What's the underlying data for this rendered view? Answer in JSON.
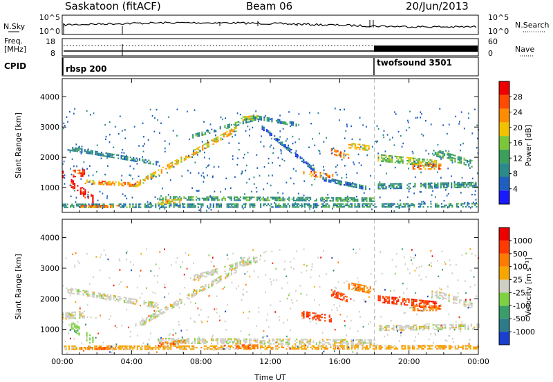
{
  "header": {
    "station": "Saskatoon (fitACF)",
    "beam": "Beam 06",
    "date": "20/Jun/2013"
  },
  "top_panels": {
    "nsky_label": "N.Sky",
    "nsearch_label": "N.Search",
    "freq_label_1": "Freq.",
    "freq_label_2": "[MHz]",
    "nave_label": "Nave",
    "cpid_label": "CPID",
    "noise_left_ticks": [
      "10^5",
      "10^0"
    ],
    "noise_right_ticks": [
      "10^5",
      "10^0"
    ],
    "freq_left_ticks": [
      "18",
      "8"
    ],
    "freq_right_ticks": [
      "60",
      "0"
    ],
    "cpid_segments": [
      {
        "name": "rbsp 200",
        "start_hour": 0.0
      },
      {
        "name": "twofsound 3501",
        "start_hour": 18.0
      }
    ]
  },
  "chart_data": [
    {
      "type": "heatmap",
      "name": "power",
      "xlabel": "Time UT",
      "ylabel": "Slant Range [km]",
      "xlim": [
        0,
        24
      ],
      "ylim": [
        180,
        4600
      ],
      "xticks": [
        0,
        4,
        8,
        12,
        16,
        20,
        24
      ],
      "xtick_labels": [
        "00:00",
        "04:00",
        "08:00",
        "12:00",
        "16:00",
        "20:00",
        "00:00"
      ],
      "yticks": [
        1000,
        2000,
        3000,
        4000
      ],
      "ytick_labels": [
        "1000",
        "2000",
        "3000",
        "4000"
      ],
      "colorbar": {
        "label": "Power [dB]",
        "range": [
          0,
          32
        ],
        "ticks": [
          "4",
          "8",
          "12",
          "16",
          "20",
          "24",
          "28"
        ],
        "colors": [
          "#1a1aff",
          "#1f5fbf",
          "#2d8a8a",
          "#3aa05a",
          "#7cc63a",
          "#f2c200",
          "#ff8c00",
          "#ff4a00",
          "#ee0000"
        ]
      },
      "bands": [
        {
          "start": 0.0,
          "end": 1.3,
          "r0": 1450,
          "r1": 1500,
          "w": 220,
          "lvl": 28
        },
        {
          "start": 0.5,
          "end": 1.8,
          "r0": 1150,
          "r1": 600,
          "w": 260,
          "lvl": 30
        },
        {
          "start": 1.3,
          "end": 4.2,
          "r0": 1200,
          "r1": 1100,
          "w": 130,
          "lvl": 22
        },
        {
          "start": 4.2,
          "end": 10.0,
          "r0": 1100,
          "r1": 2950,
          "w": 170,
          "lvl": 20
        },
        {
          "start": 0.3,
          "end": 5.5,
          "r0": 2300,
          "r1": 1800,
          "w": 140,
          "lvl": 9
        },
        {
          "start": 7.5,
          "end": 11.2,
          "r0": 2700,
          "r1": 3300,
          "w": 140,
          "lvl": 11
        },
        {
          "start": 10.3,
          "end": 11.3,
          "r0": 3300,
          "r1": 3350,
          "w": 110,
          "lvl": 18
        },
        {
          "start": 11.0,
          "end": 13.5,
          "r0": 3350,
          "r1": 3100,
          "w": 120,
          "lvl": 8
        },
        {
          "start": 11.5,
          "end": 14.5,
          "r0": 3000,
          "r1": 1600,
          "w": 110,
          "lvl": 6
        },
        {
          "start": 13.8,
          "end": 15.6,
          "r0": 1500,
          "r1": 1350,
          "w": 200,
          "lvl": 24
        },
        {
          "start": 15.5,
          "end": 16.5,
          "r0": 2200,
          "r1": 2000,
          "w": 200,
          "lvl": 24
        },
        {
          "start": 16.5,
          "end": 17.8,
          "r0": 2400,
          "r1": 2300,
          "w": 180,
          "lvl": 20
        },
        {
          "start": 15.0,
          "end": 17.5,
          "r0": 1300,
          "r1": 1000,
          "w": 120,
          "lvl": 8
        },
        {
          "start": 18.2,
          "end": 21.6,
          "r0": 2000,
          "r1": 1800,
          "w": 220,
          "lvl": 16
        },
        {
          "start": 20.2,
          "end": 21.8,
          "r0": 1700,
          "r1": 1700,
          "w": 180,
          "lvl": 24
        },
        {
          "start": 21.3,
          "end": 23.6,
          "r0": 2200,
          "r1": 1800,
          "w": 220,
          "lvl": 12
        },
        {
          "start": 18.2,
          "end": 24.0,
          "r0": 1050,
          "r1": 1100,
          "w": 180,
          "lvl": 10
        },
        {
          "start": 5.5,
          "end": 18.0,
          "r0": 650,
          "r1": 600,
          "w": 150,
          "lvl": 12
        },
        {
          "start": 0.0,
          "end": 24.0,
          "r0": 400,
          "r1": 420,
          "w": 140,
          "lvl": 10
        },
        {
          "start": 1.0,
          "end": 3.2,
          "r0": 380,
          "r1": 380,
          "w": 90,
          "lvl": 24
        },
        {
          "start": 5.5,
          "end": 7.0,
          "r0": 500,
          "r1": 600,
          "w": 140,
          "lvl": 20
        }
      ],
      "separator_hour": 18.0
    },
    {
      "type": "heatmap",
      "name": "velocity",
      "xlabel": "Time UT",
      "ylabel": "Slant Range [km]",
      "xlim": [
        0,
        24
      ],
      "ylim": [
        180,
        4600
      ],
      "xticks": [
        0,
        4,
        8,
        12,
        16,
        20,
        24
      ],
      "xtick_labels": [
        "00:00",
        "04:00",
        "08:00",
        "12:00",
        "16:00",
        "20:00",
        "00:00"
      ],
      "yticks": [
        1000,
        2000,
        3000,
        4000
      ],
      "ytick_labels": [
        "1000",
        "2000",
        "3000",
        "4000"
      ],
      "colorbar": {
        "label": "Velocity [m s⁻¹]",
        "ticks": [
          "1000",
          "500",
          "100",
          "25",
          "-25",
          "-100",
          "-500",
          "-1000"
        ],
        "colors": [
          "#1a3fcf",
          "#2d7b8a",
          "#3a9e6a",
          "#7ed241",
          "#cfcfc4",
          "#f7a600",
          "#ff7a00",
          "#ff3a00",
          "#ee0000"
        ]
      },
      "bands": [
        {
          "start": 0.0,
          "end": 1.3,
          "r0": 1450,
          "r1": 1500,
          "w": 220,
          "c": 4
        },
        {
          "start": 0.5,
          "end": 1.8,
          "r0": 1150,
          "r1": 600,
          "w": 260,
          "c": 3
        },
        {
          "start": 4.2,
          "end": 10.0,
          "r0": 1100,
          "r1": 2950,
          "w": 190,
          "c": 4
        },
        {
          "start": 0.3,
          "end": 5.5,
          "r0": 2300,
          "r1": 1800,
          "w": 150,
          "c": 4
        },
        {
          "start": 7.5,
          "end": 11.2,
          "r0": 2700,
          "r1": 3300,
          "w": 150,
          "c": 4
        },
        {
          "start": 10.3,
          "end": 11.3,
          "r0": 3300,
          "r1": 3350,
          "w": 110,
          "c": 4
        },
        {
          "start": 13.8,
          "end": 15.6,
          "r0": 1500,
          "r1": 1350,
          "w": 220,
          "c": 7
        },
        {
          "start": 15.5,
          "end": 16.5,
          "r0": 2200,
          "r1": 2000,
          "w": 220,
          "c": 7
        },
        {
          "start": 16.5,
          "end": 17.8,
          "r0": 2450,
          "r1": 2300,
          "w": 200,
          "c": 6
        },
        {
          "start": 18.2,
          "end": 21.6,
          "r0": 2000,
          "r1": 1800,
          "w": 230,
          "c": 7
        },
        {
          "start": 20.2,
          "end": 21.8,
          "r0": 1700,
          "r1": 1700,
          "w": 180,
          "c": 6
        },
        {
          "start": 21.3,
          "end": 23.6,
          "r0": 2200,
          "r1": 1800,
          "w": 230,
          "c": 4
        },
        {
          "start": 18.2,
          "end": 24.0,
          "r0": 1050,
          "r1": 1100,
          "w": 180,
          "c": 4
        },
        {
          "start": 5.5,
          "end": 18.0,
          "r0": 650,
          "r1": 600,
          "w": 150,
          "c": 4
        },
        {
          "start": 0.0,
          "end": 24.0,
          "r0": 400,
          "r1": 420,
          "w": 140,
          "c": 5
        },
        {
          "start": 1.0,
          "end": 3.2,
          "r0": 380,
          "r1": 380,
          "w": 90,
          "c": 6
        },
        {
          "start": 5.5,
          "end": 7.0,
          "r0": 500,
          "r1": 600,
          "w": 140,
          "c": 6
        },
        {
          "start": 10.0,
          "end": 11.5,
          "r0": 450,
          "r1": 450,
          "w": 120,
          "c": 6
        }
      ],
      "separator_hour": 18.0
    }
  ]
}
